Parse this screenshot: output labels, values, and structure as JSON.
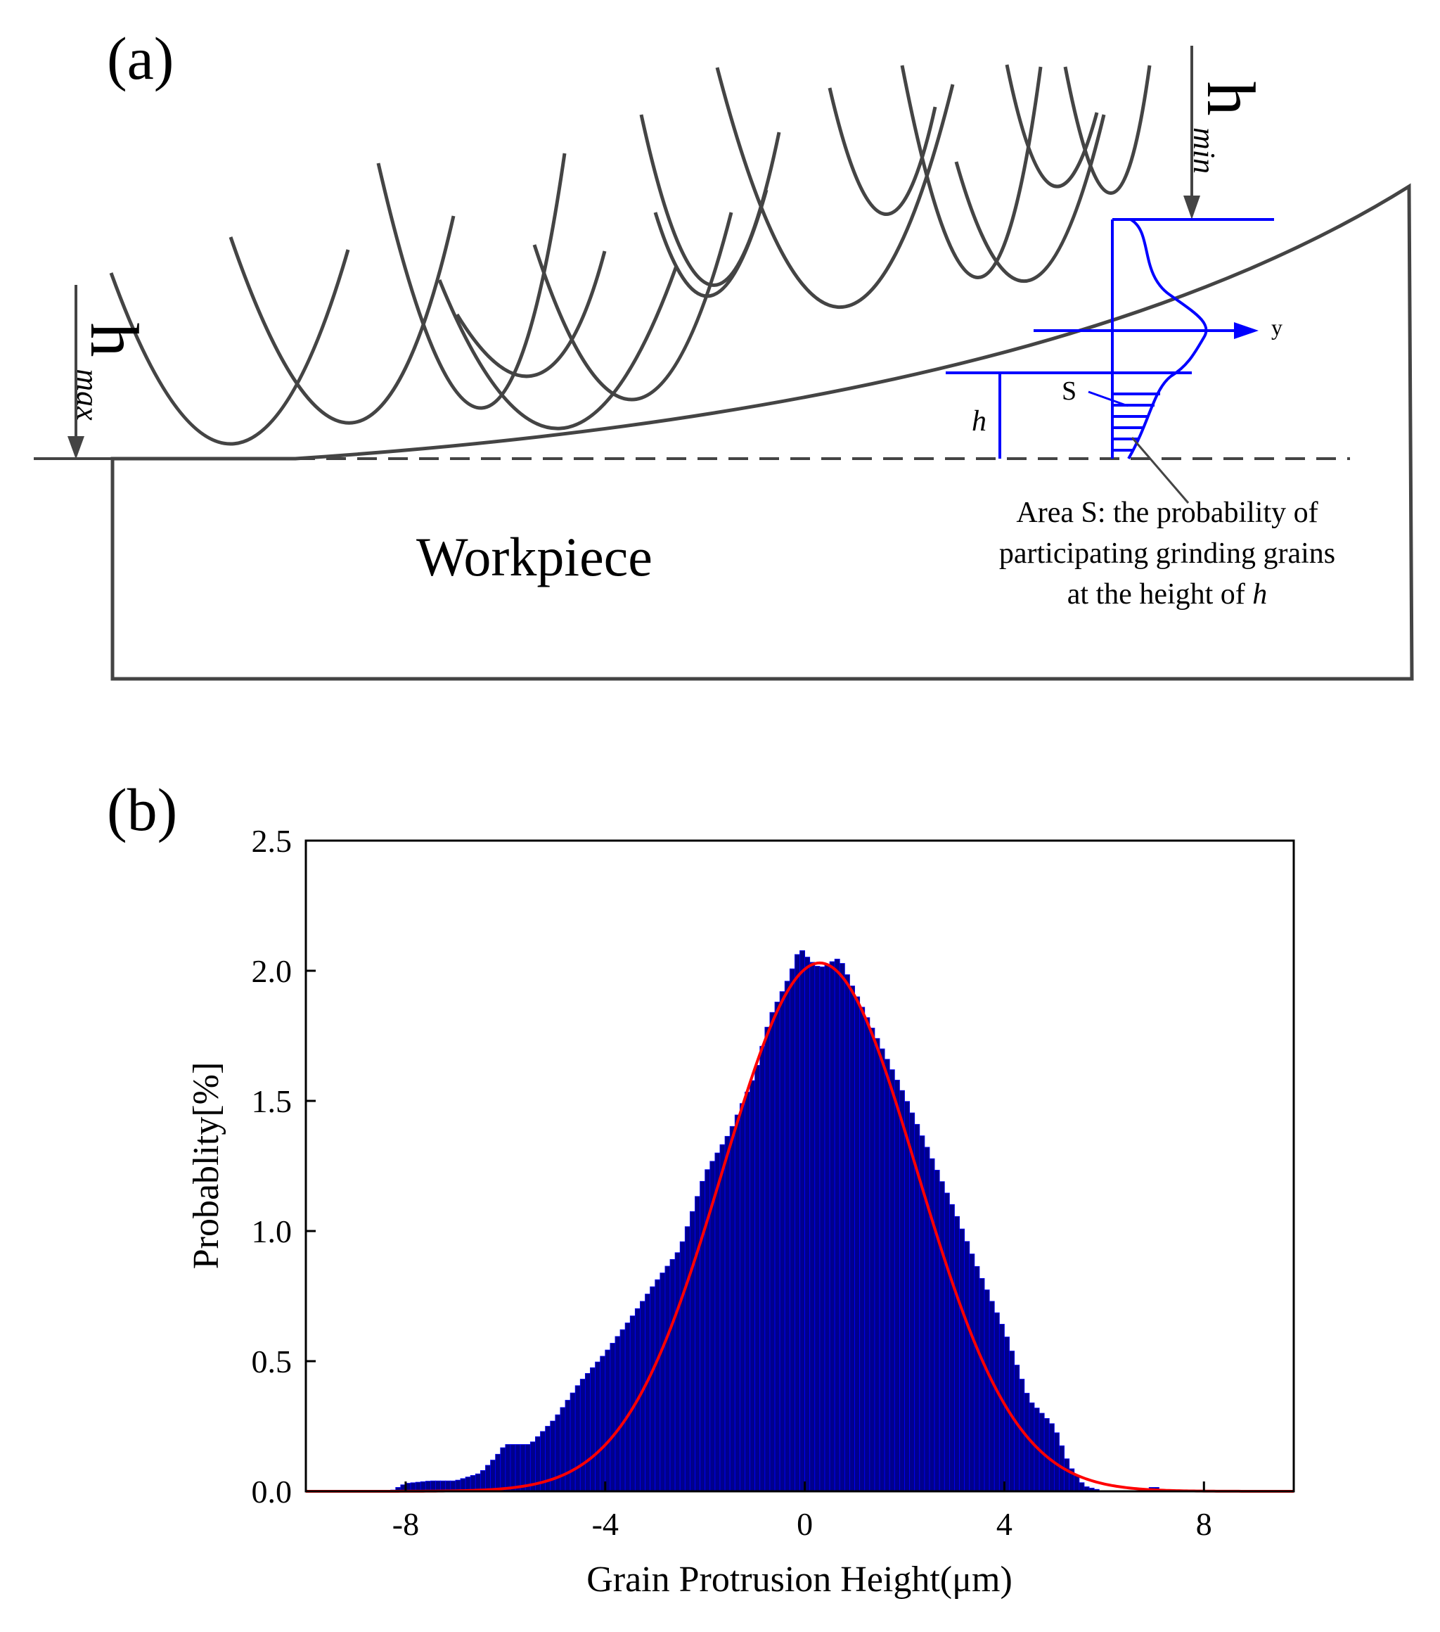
{
  "panel_a": {
    "label": "(a)",
    "h_min_label": "h",
    "h_min_subscript": "min",
    "h_max_label": "h",
    "h_max_subscript": "max",
    "workpiece_label": "Workpiece",
    "h_label": "h",
    "s_label": "S",
    "y_label": "y",
    "annotation_lines": [
      "Area S: the  probability of",
      "participating grinding grains",
      "at the height of "
    ],
    "annotation_italic_suffix": "h",
    "colors": {
      "grain": "#444444",
      "distribution": "#0000ff",
      "outline": "#444444"
    }
  },
  "panel_b": {
    "label": "(b)",
    "colors": {
      "bars": "#00008b",
      "bar_edge": "#0000ff",
      "fit": "#ff0000",
      "axes": "#000000"
    }
  },
  "chart_data": {
    "type": "bar",
    "title": "",
    "xlabel": "Grain Protrusion Height(μm)",
    "ylabel": "Probablity[%]",
    "xlim": [
      -10,
      9.8
    ],
    "ylim": [
      0,
      2.5
    ],
    "x_ticks": [
      -8,
      -4,
      0,
      4,
      8
    ],
    "x_tick_labels": [
      "-8",
      "-4",
      "0",
      "4",
      "8"
    ],
    "y_ticks": [
      0,
      0.5,
      1,
      1.5,
      2,
      2.5
    ],
    "y_tick_labels": [
      "0.0",
      "0.5",
      "1.0",
      "1.5",
      "2.0",
      "2.5"
    ],
    "grid": false,
    "histogram": {
      "name": "",
      "bin_width": 0.1,
      "profile_points": [
        [
          -8.3,
          0.0
        ],
        [
          -8.0,
          0.03
        ],
        [
          -7.5,
          0.04
        ],
        [
          -7.0,
          0.04
        ],
        [
          -6.5,
          0.07
        ],
        [
          -6.2,
          0.13
        ],
        [
          -6.0,
          0.18
        ],
        [
          -5.5,
          0.18
        ],
        [
          -5.0,
          0.28
        ],
        [
          -4.5,
          0.42
        ],
        [
          -4.0,
          0.53
        ],
        [
          -3.5,
          0.66
        ],
        [
          -3.0,
          0.8
        ],
        [
          -2.5,
          0.93
        ],
        [
          -2.0,
          1.22
        ],
        [
          -1.5,
          1.38
        ],
        [
          -1.0,
          1.6
        ],
        [
          -0.7,
          1.82
        ],
        [
          -0.3,
          1.98
        ],
        [
          -0.1,
          2.09
        ],
        [
          0.1,
          2.04
        ],
        [
          0.3,
          2.01
        ],
        [
          0.7,
          2.05
        ],
        [
          1.0,
          1.92
        ],
        [
          1.5,
          1.72
        ],
        [
          2.0,
          1.52
        ],
        [
          2.5,
          1.3
        ],
        [
          3.0,
          1.08
        ],
        [
          3.5,
          0.84
        ],
        [
          4.0,
          0.62
        ],
        [
          4.5,
          0.35
        ],
        [
          5.0,
          0.25
        ],
        [
          5.3,
          0.1
        ],
        [
          5.6,
          0.02
        ],
        [
          6.0,
          0.0
        ],
        [
          6.8,
          0.0
        ],
        [
          7.0,
          0.02
        ],
        [
          7.2,
          0.0
        ]
      ]
    },
    "fit": {
      "name": "",
      "type": "gaussian",
      "peak": 2.03,
      "mean": 0.3,
      "sigma": 1.95
    }
  }
}
